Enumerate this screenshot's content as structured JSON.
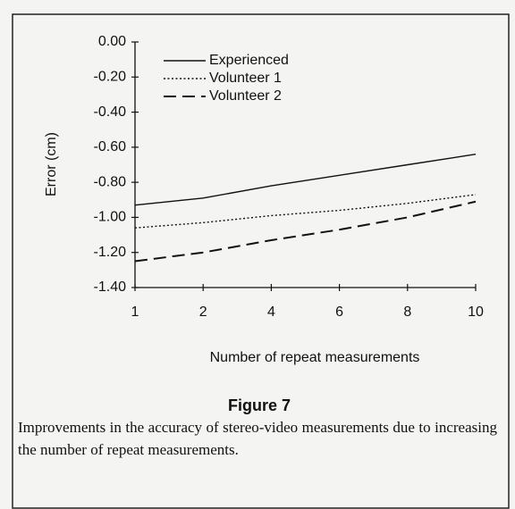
{
  "chart_data": {
    "type": "line",
    "categories": [
      "1",
      "2",
      "4",
      "6",
      "8",
      "10"
    ],
    "series": [
      {
        "name": "Experienced",
        "color": "#111111",
        "dash": "solid",
        "values": [
          -0.93,
          -0.89,
          -0.82,
          -0.76,
          -0.7,
          -0.64
        ]
      },
      {
        "name": "Volunteer 1",
        "color": "#111111",
        "dash": "dotted",
        "values": [
          -1.06,
          -1.03,
          -0.99,
          -0.96,
          -0.92,
          -0.87
        ]
      },
      {
        "name": "Volunteer 2",
        "color": "#111111",
        "dash": "dashed",
        "values": [
          -1.25,
          -1.2,
          -1.13,
          -1.07,
          -1.0,
          -0.91
        ]
      }
    ],
    "ylim": [
      -1.4,
      0
    ],
    "yticks": [
      {
        "value": 0,
        "label": "0.00"
      },
      {
        "value": -0.2,
        "label": "-0.20"
      },
      {
        "value": -0.4,
        "label": "-0.40"
      },
      {
        "value": -0.6,
        "label": "-0.60"
      },
      {
        "value": -0.8,
        "label": "-0.80"
      },
      {
        "value": -1.0,
        "label": "-1.00"
      },
      {
        "value": -1.2,
        "label": "-1.20"
      },
      {
        "value": -1.4,
        "label": "-1.40"
      }
    ],
    "ylabel": "Error (cm)",
    "xlabel": "Number of repeat measurements",
    "figure_label": "Figure 7",
    "caption": "Improvements in the accuracy of stereo-video measurements due to increasing the number of repeat measurements."
  }
}
